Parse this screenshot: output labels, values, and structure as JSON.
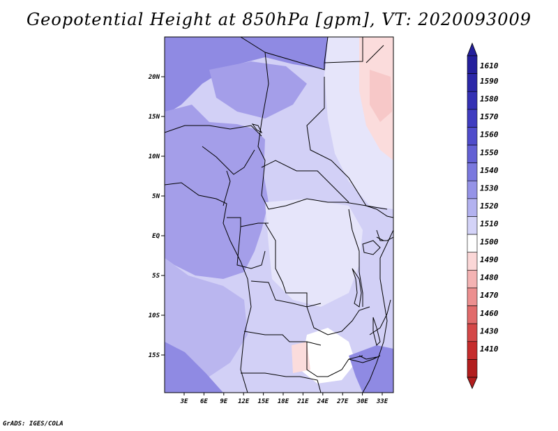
{
  "title": "Geopotential Height at 850hPa [gpm], VT: 2020093009",
  "footer": "GrADS: IGES/COLA",
  "map": {
    "lat_labels": [
      "20N",
      "15N",
      "10N",
      "5N",
      "EQ",
      "5S",
      "10S",
      "15S"
    ],
    "lon_labels": [
      "3E",
      "6E",
      "9E",
      "12E",
      "15E",
      "18E",
      "21E",
      "24E",
      "27E",
      "30E",
      "33E"
    ]
  },
  "colorbar": {
    "labels": [
      "1610",
      "1590",
      "1580",
      "1570",
      "1560",
      "1550",
      "1540",
      "1530",
      "1520",
      "1510",
      "1500",
      "1490",
      "1480",
      "1470",
      "1460",
      "1430",
      "1410"
    ],
    "colors": [
      "#241f9c",
      "#2b27a8",
      "#3431b4",
      "#3f3cc0",
      "#4f4ccb",
      "#6360d4",
      "#7a78de",
      "#9593e7",
      "#b3b2f0",
      "#d4d3f8",
      "#ffffff",
      "#fbd7d7",
      "#f4b3b3",
      "#ec8f8f",
      "#e16b6b",
      "#d44848",
      "#c52c2c",
      "#b21d1d"
    ]
  },
  "colors": {
    "deep": "#8f8ae3",
    "purple": "#a49ee9",
    "mid": "#bab6ef",
    "light": "#d2d0f6",
    "pale": "#e6e5fa",
    "pink": "#fbdcdc",
    "pinkdeep": "#f7c8c8"
  }
}
